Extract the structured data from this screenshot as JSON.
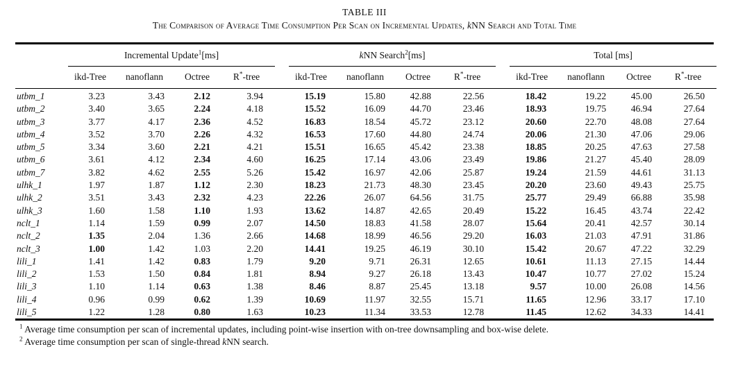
{
  "caption": {
    "label": "TABLE III",
    "part1": "The Comparison of Average Time Consumption Per Scan on Incremental Updates, ",
    "knn_k": "k",
    "part2": "NN Search and Total Time"
  },
  "table": {
    "groups": [
      {
        "italic_k": "",
        "name": "Incremental Update",
        "sup": "1",
        "unit": "[ms]"
      },
      {
        "italic_k": "k",
        "name": "NN Search",
        "sup": "2",
        "unit": "[ms]"
      },
      {
        "italic_k": "",
        "name": "Total [ms]",
        "sup": "",
        "unit": ""
      }
    ],
    "subcolumns": [
      "ikd-Tree",
      "nanoflann",
      "Octree",
      "R*-tree"
    ],
    "rows": [
      {
        "label": "utbm_1",
        "values": [
          "3.23",
          "3.43",
          "2.12",
          "3.94",
          "15.19",
          "15.80",
          "42.88",
          "22.56",
          "18.42",
          "19.22",
          "45.00",
          "26.50"
        ],
        "bold": [
          2,
          4,
          8
        ]
      },
      {
        "label": "utbm_2",
        "values": [
          "3.40",
          "3.65",
          "2.24",
          "4.18",
          "15.52",
          "16.09",
          "44.70",
          "23.46",
          "18.93",
          "19.75",
          "46.94",
          "27.64"
        ],
        "bold": [
          2,
          4,
          8
        ]
      },
      {
        "label": "utbm_3",
        "values": [
          "3.77",
          "4.17",
          "2.36",
          "4.52",
          "16.83",
          "18.54",
          "45.72",
          "23.12",
          "20.60",
          "22.70",
          "48.08",
          "27.64"
        ],
        "bold": [
          2,
          4,
          8
        ]
      },
      {
        "label": "utbm_4",
        "values": [
          "3.52",
          "3.70",
          "2.26",
          "4.32",
          "16.53",
          "17.60",
          "44.80",
          "24.74",
          "20.06",
          "21.30",
          "47.06",
          "29.06"
        ],
        "bold": [
          2,
          4,
          8
        ]
      },
      {
        "label": "utbm_5",
        "values": [
          "3.34",
          "3.60",
          "2.21",
          "4.21",
          "15.51",
          "16.65",
          "45.42",
          "23.38",
          "18.85",
          "20.25",
          "47.63",
          "27.58"
        ],
        "bold": [
          2,
          4,
          8
        ]
      },
      {
        "label": "utbm_6",
        "values": [
          "3.61",
          "4.12",
          "2.34",
          "4.60",
          "16.25",
          "17.14",
          "43.06",
          "23.49",
          "19.86",
          "21.27",
          "45.40",
          "28.09"
        ],
        "bold": [
          2,
          4,
          8
        ]
      },
      {
        "label": "utbm_7",
        "values": [
          "3.82",
          "4.62",
          "2.55",
          "5.26",
          "15.42",
          "16.97",
          "42.06",
          "25.87",
          "19.24",
          "21.59",
          "44.61",
          "31.13"
        ],
        "bold": [
          2,
          4,
          8
        ]
      },
      {
        "label": "ulhk_1",
        "values": [
          "1.97",
          "1.87",
          "1.12",
          "2.30",
          "18.23",
          "21.73",
          "48.30",
          "23.45",
          "20.20",
          "23.60",
          "49.43",
          "25.75"
        ],
        "bold": [
          2,
          4,
          8
        ]
      },
      {
        "label": "ulhk_2",
        "values": [
          "3.51",
          "3.43",
          "2.32",
          "4.23",
          "22.26",
          "26.07",
          "64.56",
          "31.75",
          "25.77",
          "29.49",
          "66.88",
          "35.98"
        ],
        "bold": [
          2,
          4,
          8
        ]
      },
      {
        "label": "ulhk_3",
        "values": [
          "1.60",
          "1.58",
          "1.10",
          "1.93",
          "13.62",
          "14.87",
          "42.65",
          "20.49",
          "15.22",
          "16.45",
          "43.74",
          "22.42"
        ],
        "bold": [
          2,
          4,
          8
        ]
      },
      {
        "label": "nclt_1",
        "values": [
          "1.14",
          "1.59",
          "0.99",
          "2.07",
          "14.50",
          "18.83",
          "41.58",
          "28.07",
          "15.64",
          "20.41",
          "42.57",
          "30.14"
        ],
        "bold": [
          2,
          4,
          8
        ]
      },
      {
        "label": "nclt_2",
        "values": [
          "1.35",
          "2.04",
          "1.36",
          "2.66",
          "14.68",
          "18.99",
          "46.56",
          "29.20",
          "16.03",
          "21.03",
          "47.91",
          "31.86"
        ],
        "bold": [
          0,
          4,
          8
        ]
      },
      {
        "label": "nclt_3",
        "values": [
          "1.00",
          "1.42",
          "1.03",
          "2.20",
          "14.41",
          "19.25",
          "46.19",
          "30.10",
          "15.42",
          "20.67",
          "47.22",
          "32.29"
        ],
        "bold": [
          0,
          4,
          8
        ]
      },
      {
        "label": "lili_1",
        "values": [
          "1.41",
          "1.42",
          "0.83",
          "1.79",
          "9.20",
          "9.71",
          "26.31",
          "12.65",
          "10.61",
          "11.13",
          "27.15",
          "14.44"
        ],
        "bold": [
          2,
          4,
          8
        ]
      },
      {
        "label": "lili_2",
        "values": [
          "1.53",
          "1.50",
          "0.84",
          "1.81",
          "8.94",
          "9.27",
          "26.18",
          "13.43",
          "10.47",
          "10.77",
          "27.02",
          "15.24"
        ],
        "bold": [
          2,
          4,
          8
        ]
      },
      {
        "label": "lili_3",
        "values": [
          "1.10",
          "1.14",
          "0.63",
          "1.38",
          "8.46",
          "8.87",
          "25.45",
          "13.18",
          "9.57",
          "10.00",
          "26.08",
          "14.56"
        ],
        "bold": [
          2,
          4,
          8
        ]
      },
      {
        "label": "lili_4",
        "values": [
          "0.96",
          "0.99",
          "0.62",
          "1.39",
          "10.69",
          "11.97",
          "32.55",
          "15.71",
          "11.65",
          "12.96",
          "33.17",
          "17.10"
        ],
        "bold": [
          2,
          4,
          8
        ]
      },
      {
        "label": "lili_5",
        "values": [
          "1.22",
          "1.28",
          "0.80",
          "1.63",
          "10.23",
          "11.34",
          "33.53",
          "12.78",
          "11.45",
          "12.62",
          "34.33",
          "14.41"
        ],
        "bold": [
          2,
          4,
          8
        ]
      }
    ]
  },
  "footnotes": [
    {
      "sup": "1",
      "part1": "Average time consumption per scan of incremental updates, including point-wise insertion with on-tree downsampling and box-wise delete.",
      "italic_k": "",
      "part2": ""
    },
    {
      "sup": "2",
      "part1": "Average time consumption per scan of single-thread ",
      "italic_k": "k",
      "part2": "NN search."
    }
  ]
}
